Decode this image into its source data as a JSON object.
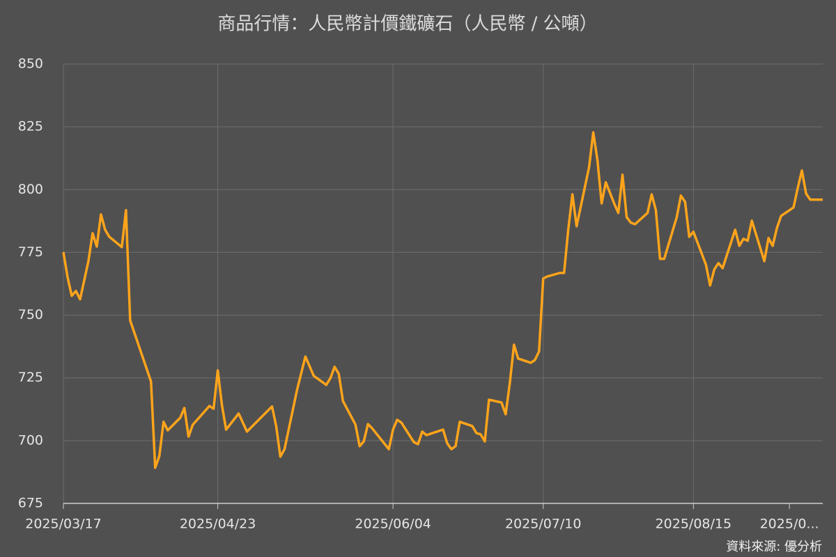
{
  "chart_data": {
    "type": "line",
    "title": "商品行情：人民幣計價鐵礦石（人民幣 / 公噸）",
    "source": "資料來源: 優分析",
    "x": [
      "2025/03/17",
      "2025/03/18",
      "2025/03/19",
      "2025/03/20",
      "2025/03/21",
      "2025/03/23",
      "2025/03/24",
      "2025/03/25",
      "2025/03/26",
      "2025/03/27",
      "2025/03/28",
      "2025/03/31",
      "2025/04/01",
      "2025/04/02",
      "2025/04/07",
      "2025/04/08",
      "2025/04/09",
      "2025/04/10",
      "2025/04/11",
      "2025/04/14",
      "2025/04/15",
      "2025/04/16",
      "2025/04/17",
      "2025/04/21",
      "2025/04/22",
      "2025/04/23",
      "2025/04/24",
      "2025/04/25",
      "2025/04/28",
      "2025/04/30",
      "2025/05/06",
      "2025/05/07",
      "2025/05/08",
      "2025/05/09",
      "2025/05/12",
      "2025/05/14",
      "2025/05/16",
      "2025/05/19",
      "2025/05/20",
      "2025/05/21",
      "2025/05/22",
      "2025/05/23",
      "2025/05/26",
      "2025/05/27",
      "2025/05/28",
      "2025/05/29",
      "2025/05/30",
      "2025/06/03",
      "2025/06/04",
      "2025/06/05",
      "2025/06/06",
      "2025/06/09",
      "2025/06/10",
      "2025/06/11",
      "2025/06/12",
      "2025/06/16",
      "2025/06/17",
      "2025/06/18",
      "2025/06/19",
      "2025/06/20",
      "2025/06/23",
      "2025/06/24",
      "2025/06/25",
      "2025/06/26",
      "2025/06/27",
      "2025/06/30",
      "2025/07/01",
      "2025/07/02",
      "2025/07/03",
      "2025/07/04",
      "2025/07/07",
      "2025/07/08",
      "2025/07/09",
      "2025/07/10",
      "2025/07/11",
      "2025/07/14",
      "2025/07/15",
      "2025/07/16",
      "2025/07/17",
      "2025/07/18",
      "2025/07/21",
      "2025/07/22",
      "2025/07/23",
      "2025/07/24",
      "2025/07/25",
      "2025/07/27",
      "2025/07/28",
      "2025/07/29",
      "2025/07/30",
      "2025/07/31",
      "2025/08/01",
      "2025/08/04",
      "2025/08/05",
      "2025/08/06",
      "2025/08/07",
      "2025/08/08",
      "2025/08/11",
      "2025/08/12",
      "2025/08/13",
      "2025/08/14",
      "2025/08/15",
      "2025/08/18",
      "2025/08/19",
      "2025/08/20",
      "2025/08/21",
      "2025/08/22",
      "2025/08/25",
      "2025/08/26",
      "2025/08/27",
      "2025/08/28",
      "2025/08/29",
      "2025/09/01",
      "2025/09/02",
      "2025/09/03",
      "2025/09/04",
      "2025/09/05",
      "2025/09/08",
      "2025/09/09",
      "2025/09/10",
      "2025/09/11",
      "2025/09/12",
      "2025/09/15"
    ],
    "series": [
      {
        "name": "人民幣計價鐵礦石",
        "color": "#ffa41b",
        "values": [
          775.1,
          765.1,
          757.7,
          759.6,
          756.3,
          771.5,
          782.6,
          777.3,
          790.1,
          784.0,
          781.2,
          777.1,
          791.8,
          747.9,
          723.5,
          689.2,
          693.9,
          707.5,
          704.1,
          709.1,
          713.0,
          701.6,
          706.3,
          713.8,
          712.7,
          728.0,
          714.1,
          704.4,
          710.8,
          703.6,
          713.6,
          705.8,
          693.6,
          696.6,
          720.2,
          733.5,
          725.8,
          722.2,
          724.9,
          729.4,
          726.6,
          715.8,
          706.4,
          697.8,
          699.7,
          706.6,
          704.9,
          696.6,
          704.4,
          708.3,
          707.2,
          699.4,
          698.6,
          703.6,
          702.2,
          704.4,
          698.9,
          696.6,
          697.8,
          707.5,
          705.8,
          703.0,
          702.5,
          699.7,
          716.3,
          715.2,
          710.5,
          723.0,
          738.2,
          732.7,
          731.0,
          732.1,
          735.5,
          764.6,
          765.4,
          766.8,
          766.8,
          784.0,
          798.1,
          785.4,
          809.0,
          822.8,
          811.7,
          794.5,
          802.9,
          794.5,
          790.7,
          805.9,
          789.0,
          786.8,
          786.2,
          790.7,
          798.1,
          791.8,
          772.4,
          772.4,
          789.0,
          797.6,
          795.1,
          781.2,
          783.2,
          770.1,
          761.8,
          768.2,
          770.7,
          768.7,
          784.0,
          777.6,
          780.4,
          779.6,
          787.6,
          771.5,
          780.7,
          777.6,
          784.6,
          789.5,
          792.9,
          800.6,
          807.6,
          798.4,
          796.0,
          796.0
        ]
      }
    ],
    "xlim": [
      "2025/03/17",
      "2025/09/15"
    ],
    "xticks": [
      "2025/03/17",
      "2025/04/23",
      "2025/06/04",
      "2025/07/10",
      "2025/08/15",
      {
        "value": "2025/09/07",
        "label": "2025/0..."
      }
    ],
    "ylim": [
      675,
      850
    ],
    "yticks": [
      675,
      700,
      725,
      750,
      775,
      800,
      825,
      850
    ],
    "grid": true
  }
}
